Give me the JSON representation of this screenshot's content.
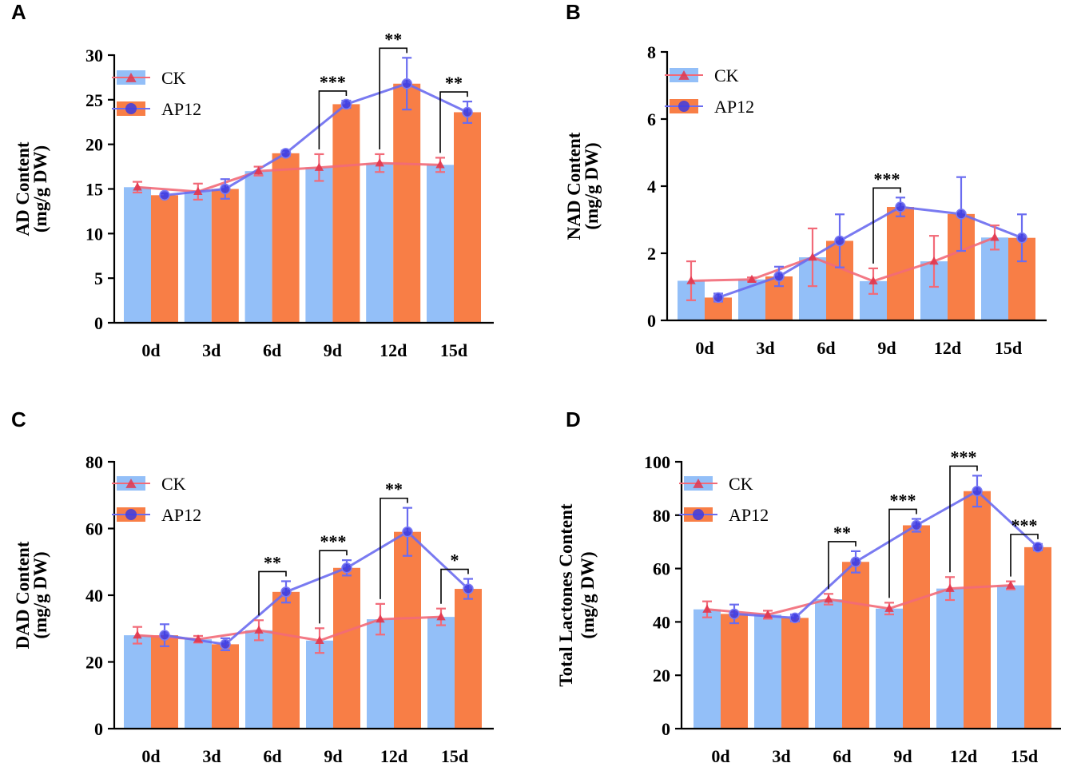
{
  "figure": {
    "legend": {
      "ck": "CK",
      "ap12": "AP12"
    }
  },
  "colors": {
    "ck_bar": "#93BFF8",
    "ap12_bar": "#F87E46",
    "ck_line": "#F26A78",
    "ap12_line": "#6A6CF0",
    "ck_marker": "#E2364C",
    "ap12_marker": "#3D3BE0"
  },
  "chart_data": [
    {
      "id": "A",
      "type": "bar",
      "panel_label": "A",
      "ylabel_line1": "AD Content",
      "ylabel_line2": "(mg/g DW)",
      "categories": [
        "0d",
        "3d",
        "6d",
        "9d",
        "12d",
        "15d"
      ],
      "ylim": [
        0,
        30
      ],
      "yticks": [
        0,
        5,
        10,
        15,
        20,
        25,
        30
      ],
      "series": [
        {
          "name": "CK",
          "values": [
            15.2,
            14.7,
            17.0,
            17.4,
            17.9,
            17.7
          ],
          "errors": [
            0.6,
            0.9,
            0.5,
            1.5,
            1.0,
            0.8
          ]
        },
        {
          "name": "AP12",
          "values": [
            14.3,
            15.0,
            19.0,
            24.5,
            26.8,
            23.6
          ],
          "errors": [
            0.2,
            1.1,
            0.3,
            0.4,
            2.9,
            1.2
          ]
        }
      ],
      "significance": [
        {
          "index": 3,
          "label": "***"
        },
        {
          "index": 4,
          "label": "**"
        },
        {
          "index": 5,
          "label": "**"
        }
      ]
    },
    {
      "id": "B",
      "type": "bar",
      "panel_label": "B",
      "ylabel_line1": "NAD Content",
      "ylabel_line2": "(mg/g DW)",
      "categories": [
        "0d",
        "3d",
        "6d",
        "9d",
        "12d",
        "15d"
      ],
      "ylim": [
        0,
        8
      ],
      "yticks": [
        0,
        2,
        4,
        6,
        8
      ],
      "series": [
        {
          "name": "CK",
          "values": [
            1.18,
            1.22,
            1.88,
            1.17,
            1.76,
            2.47
          ],
          "errors": [
            0.58,
            0.06,
            0.86,
            0.38,
            0.76,
            0.36
          ]
        },
        {
          "name": "AP12",
          "values": [
            0.68,
            1.31,
            2.37,
            3.38,
            3.17,
            2.46
          ],
          "errors": [
            0.12,
            0.29,
            0.79,
            0.28,
            1.1,
            0.7
          ]
        }
      ],
      "significance": [
        {
          "index": 3,
          "label": "***"
        }
      ]
    },
    {
      "id": "C",
      "type": "bar",
      "panel_label": "C",
      "ylabel_line1": "DAD Content",
      "ylabel_line2": "(mg/g DW)",
      "categories": [
        "0d",
        "3d",
        "6d",
        "9d",
        "12d",
        "15d"
      ],
      "ylim": [
        0,
        80
      ],
      "yticks": [
        0,
        20,
        40,
        60,
        80
      ],
      "series": [
        {
          "name": "CK",
          "values": [
            28.0,
            26.8,
            29.5,
            26.4,
            32.8,
            33.5
          ],
          "errors": [
            2.5,
            1.0,
            3.0,
            3.7,
            4.6,
            2.5
          ]
        },
        {
          "name": "AP12",
          "values": [
            28.0,
            25.3,
            41.0,
            48.2,
            59.0,
            41.9
          ],
          "errors": [
            3.3,
            1.8,
            3.2,
            2.3,
            7.2,
            3.0
          ]
        }
      ],
      "significance": [
        {
          "index": 2,
          "label": "**"
        },
        {
          "index": 3,
          "label": "***"
        },
        {
          "index": 4,
          "label": "**"
        },
        {
          "index": 5,
          "label": "*"
        }
      ]
    },
    {
      "id": "D",
      "type": "bar",
      "panel_label": "D",
      "ylabel_line1": "Total Lactones Content",
      "ylabel_line2": "(mg/g DW)",
      "categories": [
        "0d",
        "3d",
        "6d",
        "9d",
        "12d",
        "15d"
      ],
      "ylim": [
        0,
        100
      ],
      "yticks": [
        0,
        20,
        40,
        60,
        80,
        100
      ],
      "series": [
        {
          "name": "CK",
          "values": [
            44.7,
            42.7,
            48.5,
            45.0,
            52.5,
            53.7
          ],
          "errors": [
            3.0,
            1.5,
            2.0,
            2.2,
            4.3,
            1.5
          ]
        },
        {
          "name": "AP12",
          "values": [
            43.0,
            41.5,
            62.5,
            76.2,
            89.0,
            68.0
          ],
          "errors": [
            3.5,
            1.3,
            4.0,
            2.4,
            5.8,
            1.2
          ]
        }
      ],
      "significance": [
        {
          "index": 2,
          "label": "**"
        },
        {
          "index": 3,
          "label": "***"
        },
        {
          "index": 4,
          "label": "***"
        },
        {
          "index": 5,
          "label": "***"
        }
      ]
    }
  ]
}
